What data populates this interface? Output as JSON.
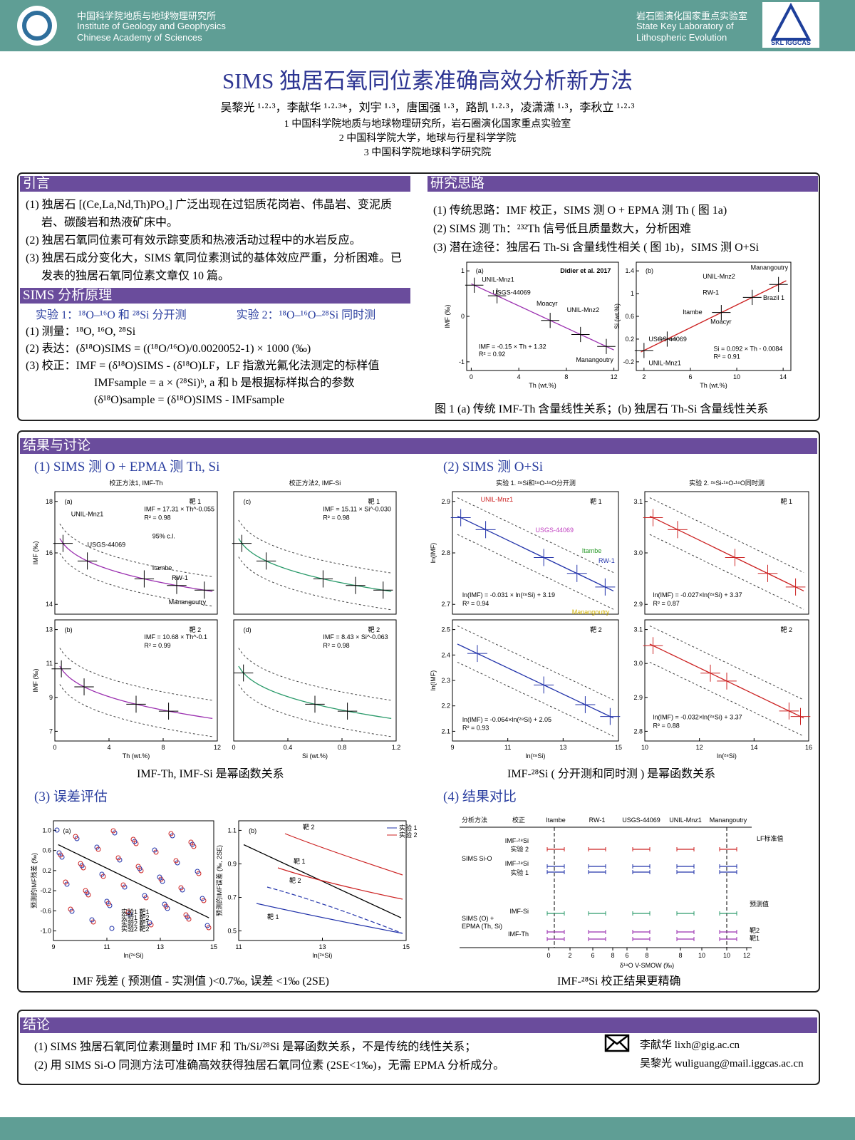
{
  "header": {
    "org_cn": "中国科学院地质与地球物理研究所",
    "org_en1": "Institute of Geology and Geophysics",
    "org_en2": "Chinese Academy of Sciences",
    "lab_cn": "岩石圈演化国家重点实验室",
    "lab_en1": "State Key Laboratory of",
    "lab_en2": "Lithospheric Evolution",
    "logo_text": "SKL IGGCAS"
  },
  "title": "SIMS 独居石氧同位素准确高效分析新方法",
  "authors": "吴黎光 ¹·²·³，李献华 ¹·²·³*，刘宇 ¹·³，唐国强 ¹·³，路凯 ¹·²·³，凌潇潇 ¹·³，李秋立 ¹·²·³",
  "affiliations": [
    "1 中国科学院地质与地球物理研究所，岩石圈演化国家重点实验室",
    "2 中国科学院大学，地球与行星科学学院",
    "3 中国科学院地球科学研究院"
  ],
  "intro": {
    "heading": "引言",
    "items": [
      "(1) 独居石 [(Ce,La,Nd,Th)PO₄] 广泛出现在过铝质花岗岩、伟晶岩、变泥质岩、碳酸岩和热液矿床中。",
      "(2) 独居石氧同位素可有效示踪变质和热液活动过程中的水岩反应。",
      "(3) 独居石成分变化大，SIMS 氧同位素测试的基体效应严重，分析困难。已发表的独居石氧同位素文章仅 10 篇。"
    ]
  },
  "principle": {
    "heading": "SIMS 分析原理",
    "exp1": "实验 1：¹⁸O–¹⁶O 和 ²⁸Si 分开测",
    "exp2": "实验 2：¹⁸O–¹⁶O–²⁸Si 同时测",
    "items": [
      "(1) 测量：¹⁸O, ¹⁶O, ²⁸Si",
      "(2) 表达：(δ¹⁸O)SIMS = ((¹⁸O/¹⁶O)/0.0020052-1) × 1000 (‰)",
      "(3) 校正：IMF = (δ¹⁸O)SIMS - (δ¹⁸O)LF，LF 指激光氟化法测定的标样值",
      "IMFsample = a × (²⁸Si)ᵇ, a 和 b 是根据标样拟合的参数",
      "(δ¹⁸O)sample = (δ¹⁸O)SIMS - IMFsample"
    ]
  },
  "approach": {
    "heading": "研究思路",
    "items": [
      "(1) 传统思路：IMF 校正，SIMS 测 O + EPMA 测 Th ( 图 1a)",
      "(2) SIMS 测 Th：²³²Th 信号低且质量数大，分析困难",
      "(3) 潜在途径：独居石 Th-Si 含量线性相关 ( 图 1b)，SIMS 测 O+Si"
    ],
    "fig_a": {
      "label": "(a)",
      "credit": "Didier et al. 2017",
      "samples": [
        "UNIL-Mnz1",
        "USGS-44069",
        "Moacyr",
        "UNIL-Mnz2",
        "Manangoutry"
      ],
      "eq": "IMF = -0.15 × Th + 1.32",
      "r2": "R² = 0.92",
      "xticks": [
        "0",
        "4",
        "8",
        "12"
      ],
      "yticks": [
        "1",
        "0",
        "-1"
      ],
      "xlabel": "Th (wt.%)",
      "ylabel": "IMF (‰)"
    },
    "fig_b": {
      "label": "(b)",
      "samples": [
        "Manangoutry",
        "UNIL-Mnz2",
        "RW-1",
        "Brazil 1",
        "Itambe",
        "Moacyr",
        "USGS-44069",
        "UNIL-Mnz1"
      ],
      "eq": "Si = 0.092 × Th - 0.0084",
      "r2": "R² = 0.91",
      "xticks": [
        "2",
        "6",
        "10",
        "14"
      ],
      "yticks": [
        "1.4",
        "1",
        "0.6",
        "0.2",
        "-0.2"
      ],
      "xlabel": "Th (wt.%)",
      "ylabel": "Si (wt.%)"
    },
    "caption": "图 1 (a) 传统 IMF-Th 含量线性关系；(b) 独居石 Th-Si 含量线性关系"
  },
  "results": {
    "heading": "结果与讨论",
    "s1": {
      "title": "(1) SIMS 测 O + EPMA 测 Th, Si",
      "col_titles": [
        "校正方法1, IMF-Th",
        "校正方法2, IMF-Si"
      ],
      "a": {
        "label": "(a)",
        "target": "靶 1",
        "eq": "IMF = 17.31 × Th^-0.055",
        "r2": "R² = 0.98",
        "note": "95% c.l.",
        "samples": [
          "UNIL-Mnz1",
          "USGS-44069",
          "Itambe",
          "RW-1",
          "Manangoutry"
        ],
        "yticks": [
          "18",
          "16",
          "14"
        ],
        "ylabel": "IMF (‰)"
      },
      "b": {
        "label": "(b)",
        "target": "靶 2",
        "eq": "IMF = 10.68 × Th^-0.1",
        "r2": "R² = 0.99",
        "yticks": [
          "13",
          "11",
          "9",
          "7"
        ],
        "xticks": [
          "0",
          "4",
          "8",
          "12"
        ],
        "xlabel": "Th (wt.%)",
        "ylabel": "IMF (‰)"
      },
      "c": {
        "label": "(c)",
        "target": "靶 1",
        "eq": "IMF = 15.11 × Si^-0.030",
        "r2": "R² = 0.98"
      },
      "d": {
        "label": "(d)",
        "target": "靶 2",
        "eq": "IMF = 8.43 × Si^-0.063",
        "r2": "R² = 0.98",
        "xticks": [
          "0",
          "0.4",
          "0.8",
          "1.2"
        ],
        "xlabel": "Si (wt.%)"
      },
      "caption": "IMF-Th, IMF-Si 是幂函数关系"
    },
    "s2": {
      "title": "(2) SIMS 测 O+Si",
      "col_titles": [
        "实验 1. ²⁸Si和¹⁸O-¹⁶O分开测",
        "实验 2. ²⁸Si-¹⁸O-¹⁶O同时测"
      ],
      "a": {
        "target": "靶 1",
        "samples": [
          "UNIL-Mnz1",
          "USGS-44069",
          "Itambe",
          "RW-1",
          "Manangoutry"
        ],
        "eq": "ln(IMF) = -0.031 × ln(²⁸Si) + 3.19",
        "r2": "R² = 0.94",
        "yticks": [
          "2.9",
          "2.8",
          "2.7"
        ],
        "ylabel": "ln(IMF)"
      },
      "b": {
        "target": "靶 1",
        "eq": "ln(IMF) = -0.027×ln(²⁸Si) + 3.37",
        "r2": "R² = 0.87",
        "yticks": [
          "3.1",
          "3.0",
          "2.9"
        ]
      },
      "c": {
        "target": "靶 2",
        "eq": "ln(IMF) = -0.064×ln(²⁸Si) + 2.05",
        "r2": "R² = 0.93",
        "yticks": [
          "2.5",
          "2.4",
          "2.3",
          "2.2",
          "2.1"
        ],
        "xticks": [
          "9",
          "11",
          "13",
          "15"
        ],
        "xlabel": "ln(²⁸Si)",
        "ylabel": "ln(IMF)"
      },
      "d": {
        "target": "靶 2",
        "eq": "ln(IMF) = -0.032×ln(²⁸Si) + 3.37",
        "r2": "R² = 0.88",
        "yticks": [
          "3.1",
          "3.0",
          "2.9",
          "2.8"
        ],
        "xticks": [
          "10",
          "12",
          "14",
          "16"
        ],
        "xlabel": "ln(²⁸Si)"
      },
      "caption": "IMF-²⁸Si ( 分开测和同时测 ) 是幂函数关系"
    },
    "s3": {
      "title": "(3) 误差评估",
      "a": {
        "label": "(a)",
        "yticks": [
          "1.0",
          "0.6",
          "0.2",
          "-0.2",
          "-0.6",
          "-1.0"
        ],
        "xticks": [
          "9",
          "11",
          "13",
          "15"
        ],
        "xlabel": "ln(²⁸Si)",
        "ylabel": "预测的IMF残差 (‰)",
        "legend": [
          "实验1 靶1",
          "实验1 靶2",
          "实验2 靶1",
          "实验2 靶2"
        ]
      },
      "b": {
        "label": "(b)",
        "yticks": [
          "1.1",
          "0.9",
          "0.7",
          "0.5"
        ],
        "xticks": [
          "11",
          "13",
          "15"
        ],
        "xlabel": "ln(²⁸Si)",
        "ylabel": "预测的IMF误差 (‰, 2SE)",
        "legend": [
          "实验 1",
          "实验 2"
        ],
        "curves": [
          "靶 2",
          "靶 1",
          "靶 2",
          "靶 1"
        ]
      },
      "caption": "IMF 残差 ( 预测值 - 实测值 )<0.7‰, 误差 <1‰ (2SE)"
    },
    "s4": {
      "title": "(4) 结果对比",
      "header": [
        "分析方法",
        "校正",
        "Itambe",
        "RW-1",
        "USGS-44069",
        "UNIL-Mnz1",
        "Manangoutry"
      ],
      "groups": [
        "SIMS Si-O",
        "SIMS (O) +",
        "EPMA (Th, Si)"
      ],
      "rows": [
        "IMF-²⁸Si",
        "实验 2",
        "IMF-²⁸Si",
        "实验 1",
        "IMF-Si",
        "IMF-Th"
      ],
      "notes": [
        "LF标准值",
        "预测值",
        "靶2",
        "靶1"
      ],
      "xticks": [
        "0",
        "2",
        "6",
        "8",
        "6",
        "8",
        "8",
        "10",
        "10",
        "12"
      ],
      "xlabel": "δ¹⁸O V-SMOW (‰)",
      "caption": "IMF-²⁸Si 校正结果更精确"
    }
  },
  "conclusion": {
    "heading": "结论",
    "items": [
      "(1) SIMS 独居石氧同位素测量时 IMF 和 Th/Si/²⁸Si 是幂函数关系，不是传统的线性关系；",
      "(2) 用 SIMS Si-O 同测方法可准确高效获得独居石氧同位素 (2SE<1‰)，无需 EPMA 分析成分。"
    ],
    "contacts": [
      "李献华 lixh@gig.ac.cn",
      "吴黎光 wuliguang@mail.iggcas.ac.cn"
    ]
  }
}
